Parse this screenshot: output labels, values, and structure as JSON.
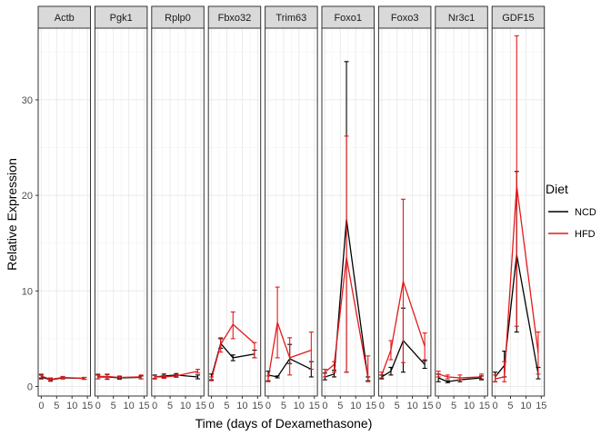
{
  "chart_data": {
    "type": "line",
    "facet_variable": "gene",
    "xlabel": "Time (days of Dexamethasone)",
    "ylabel": "Relative Expression",
    "x_ticks": [
      0,
      5,
      10,
      15
    ],
    "y_ticks": [
      0,
      10,
      20,
      30
    ],
    "xlim": [
      -1,
      16
    ],
    "ylim": [
      -1,
      37.5
    ],
    "grid": true,
    "legend": {
      "title": "Diet",
      "placement": "right",
      "entries": [
        {
          "name": "NCD",
          "color": "#000000"
        },
        {
          "name": "HFD",
          "color": "#e41a1c"
        }
      ]
    },
    "x": [
      0,
      3,
      7,
      14
    ],
    "panels": [
      {
        "gene": "Actb",
        "series": [
          {
            "name": "NCD",
            "values": [
              1.0,
              0.7,
              0.9,
              0.85
            ],
            "err_low": [
              0.8,
              0.55,
              0.8,
              0.75
            ],
            "err_high": [
              1.2,
              0.85,
              1.0,
              0.95
            ]
          },
          {
            "name": "HFD",
            "values": [
              1.1,
              0.75,
              0.95,
              0.85
            ],
            "err_low": [
              0.9,
              0.6,
              0.85,
              0.75
            ],
            "err_high": [
              1.3,
              0.9,
              1.05,
              0.95
            ]
          }
        ]
      },
      {
        "gene": "Pgk1",
        "series": [
          {
            "name": "NCD",
            "values": [
              1.0,
              1.0,
              0.9,
              0.95
            ],
            "err_low": [
              0.8,
              0.75,
              0.75,
              0.8
            ],
            "err_high": [
              1.2,
              1.25,
              1.05,
              1.1
            ]
          },
          {
            "name": "HFD",
            "values": [
              1.05,
              1.05,
              0.95,
              1.0
            ],
            "err_low": [
              0.8,
              0.8,
              0.8,
              0.8
            ],
            "err_high": [
              1.3,
              1.3,
              1.1,
              1.2
            ]
          }
        ]
      },
      {
        "gene": "Rplp0",
        "series": [
          {
            "name": "NCD",
            "values": [
              1.0,
              1.1,
              1.2,
              1.0
            ],
            "err_low": [
              0.8,
              0.9,
              1.0,
              0.8
            ],
            "err_high": [
              1.2,
              1.3,
              1.35,
              1.2
            ]
          },
          {
            "name": "HFD",
            "values": [
              1.0,
              1.0,
              1.1,
              1.6
            ],
            "err_low": [
              0.85,
              0.85,
              0.95,
              1.4
            ],
            "err_high": [
              1.15,
              1.15,
              1.25,
              1.8
            ]
          }
        ]
      },
      {
        "gene": "Fbxo32",
        "series": [
          {
            "name": "NCD",
            "values": [
              1.0,
              4.5,
              3.0,
              3.4
            ],
            "err_low": [
              0.7,
              4.0,
              2.7,
              3.0
            ],
            "err_high": [
              1.3,
              5.0,
              3.3,
              3.8
            ]
          },
          {
            "name": "HFD",
            "values": [
              0.8,
              4.4,
              6.5,
              4.5
            ],
            "err_low": [
              0.6,
              3.6,
              5.0,
              3.0
            ],
            "err_high": [
              1.0,
              5.1,
              7.8,
              4.6
            ]
          }
        ]
      },
      {
        "gene": "Trim63",
        "series": [
          {
            "name": "NCD",
            "values": [
              1.2,
              1.0,
              2.9,
              1.8
            ],
            "err_low": [
              0.6,
              0.9,
              2.4,
              1.0
            ],
            "err_high": [
              1.6,
              1.1,
              4.4,
              2.6
            ]
          },
          {
            "name": "HFD",
            "values": [
              0.8,
              6.7,
              3.0,
              3.8
            ],
            "err_low": [
              0.5,
              3.0,
              1.2,
              1.8
            ],
            "err_high": [
              1.1,
              10.4,
              5.1,
              5.7
            ]
          }
        ]
      },
      {
        "gene": "Foxo1",
        "series": [
          {
            "name": "NCD",
            "values": [
              1.0,
              1.3,
              17.5,
              0.8
            ],
            "err_low": [
              0.7,
              1.0,
              1.5,
              0.6
            ],
            "err_high": [
              1.4,
              1.7,
              34.0,
              1.0
            ]
          },
          {
            "name": "HFD",
            "values": [
              1.5,
              2.3,
              13.5,
              0.9
            ],
            "err_low": [
              1.0,
              1.5,
              1.5,
              0.5
            ],
            "err_high": [
              1.8,
              2.6,
              26.2,
              3.2
            ]
          }
        ]
      },
      {
        "gene": "Foxo3",
        "series": [
          {
            "name": "NCD",
            "values": [
              1.0,
              1.6,
              4.8,
              2.3
            ],
            "err_low": [
              0.8,
              1.2,
              1.5,
              1.9
            ],
            "err_high": [
              1.2,
              2.0,
              8.2,
              2.7
            ]
          },
          {
            "name": "HFD",
            "values": [
              1.2,
              3.8,
              11.0,
              4.2
            ],
            "err_low": [
              0.9,
              2.8,
              2.5,
              2.8
            ],
            "err_high": [
              1.5,
              4.8,
              19.6,
              5.6
            ]
          }
        ]
      },
      {
        "gene": "Nr3c1",
        "series": [
          {
            "name": "NCD",
            "values": [
              0.9,
              0.5,
              0.7,
              0.9
            ],
            "err_low": [
              0.5,
              0.4,
              0.5,
              0.7
            ],
            "err_high": [
              1.3,
              0.6,
              0.9,
              1.1
            ]
          },
          {
            "name": "HFD",
            "values": [
              1.3,
              1.0,
              0.9,
              1.0
            ],
            "err_low": [
              1.0,
              0.8,
              0.7,
              0.8
            ],
            "err_high": [
              1.6,
              1.2,
              1.2,
              1.3
            ]
          }
        ]
      },
      {
        "gene": "GDF15",
        "series": [
          {
            "name": "NCD",
            "values": [
              1.0,
              2.2,
              13.8,
              1.3
            ],
            "err_low": [
              0.5,
              1.0,
              5.7,
              0.8
            ],
            "err_high": [
              1.5,
              3.7,
              22.5,
              2.0
            ]
          },
          {
            "name": "HFD",
            "values": [
              0.8,
              1.0,
              21.0,
              3.5
            ],
            "err_low": [
              0.5,
              0.5,
              6.3,
              1.3
            ],
            "err_high": [
              1.2,
              2.6,
              36.7,
              5.7
            ]
          }
        ]
      }
    ]
  }
}
